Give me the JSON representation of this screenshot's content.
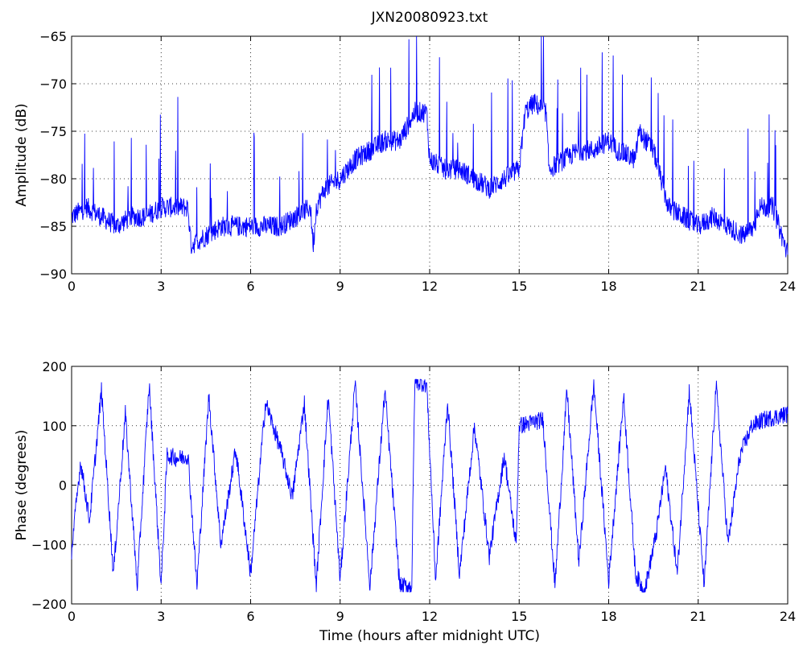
{
  "chart_data": [
    {
      "type": "line",
      "title": "JXN20080923.txt",
      "xlabel": "",
      "ylabel": "Amplitude (dB)",
      "xlim": [
        0,
        24
      ],
      "ylim": [
        -90,
        -65
      ],
      "xticks": [
        "0",
        "3",
        "6",
        "9",
        "12",
        "15",
        "18",
        "21",
        "24"
      ],
      "yticks": [
        "-65",
        "-70",
        "-75",
        "-80",
        "-85",
        "-90"
      ],
      "grid": true,
      "line_color": "#0000ff",
      "series": [
        {
          "x": [
            0,
            0.5,
            1,
            1.5,
            2,
            2.5,
            3,
            3.5,
            3.9,
            4.0,
            4.5,
            5,
            5.5,
            6,
            6.5,
            7,
            7.5,
            8,
            8.1,
            8.2,
            8.5,
            9,
            9.5,
            10,
            10.5,
            11,
            11.5,
            11.9,
            12,
            12.5,
            13,
            13.5,
            14,
            14.5,
            15,
            15.2,
            15.5,
            15.9,
            16,
            16.5,
            17,
            17.5,
            18,
            18.3,
            18.9,
            19,
            19.5,
            20,
            20.5,
            21,
            21.5,
            22,
            22.5,
            22.9,
            23,
            23.5,
            24
          ],
          "y": [
            -84,
            -83,
            -84,
            -85,
            -84,
            -84,
            -83,
            -83,
            -83,
            -87,
            -86,
            -85,
            -85,
            -85,
            -85,
            -85,
            -84,
            -83,
            -87,
            -83,
            -81,
            -80,
            -78,
            -77,
            -76,
            -76,
            -73,
            -73,
            -78,
            -79,
            -79,
            -80,
            -81,
            -80,
            -79,
            -73,
            -72,
            -73,
            -79,
            -78,
            -77,
            -77,
            -76,
            -77,
            -78,
            -75,
            -77,
            -83,
            -84,
            -85,
            -84,
            -85,
            -86,
            -85,
            -83,
            -83,
            -88
          ]
        }
      ]
    },
    {
      "type": "line",
      "title": "",
      "xlabel": "Time (hours after midnight UTC)",
      "ylabel": "Phase (degrees)",
      "xlim": [
        0,
        24
      ],
      "ylim": [
        -200,
        200
      ],
      "xticks": [
        "0",
        "3",
        "6",
        "9",
        "12",
        "15",
        "18",
        "21",
        "24"
      ],
      "yticks": [
        "200",
        "100",
        "0",
        "-100",
        "-200"
      ],
      "grid": true,
      "line_color": "#0000ff",
      "series": [
        {
          "x": [
            0,
            0.3,
            0.6,
            1.0,
            1.4,
            1.8,
            2.2,
            2.6,
            3.0,
            3.2,
            3.6,
            3.9,
            4.2,
            4.6,
            5.0,
            5.5,
            6.0,
            6.5,
            7.0,
            7.4,
            7.8,
            8.2,
            8.6,
            9.0,
            9.5,
            10.0,
            10.5,
            11.0,
            11.4,
            11.5,
            11.9,
            12.2,
            12.6,
            13.0,
            13.5,
            14.0,
            14.5,
            14.9,
            15.0,
            15.4,
            15.8,
            16.2,
            16.6,
            17.0,
            17.5,
            18.0,
            18.5,
            18.9,
            19.2,
            19.6,
            19.9,
            20.3,
            20.7,
            21.2,
            21.6,
            22.0,
            22.4,
            22.8,
            23.2,
            23.6,
            24.0
          ],
          "y": [
            -110,
            40,
            -60,
            160,
            -150,
            120,
            -170,
            170,
            -170,
            50,
            45,
            50,
            -170,
            150,
            -100,
            60,
            -150,
            140,
            60,
            -20,
            140,
            -170,
            150,
            -160,
            170,
            -170,
            160,
            -170,
            -170,
            175,
            170,
            -160,
            140,
            -150,
            100,
            -120,
            50,
            -100,
            100,
            105,
            110,
            -170,
            160,
            -130,
            170,
            -160,
            150,
            -150,
            -180,
            -80,
            30,
            -150,
            160,
            -170,
            170,
            -100,
            50,
            100,
            110,
            115,
            120
          ]
        }
      ]
    }
  ]
}
